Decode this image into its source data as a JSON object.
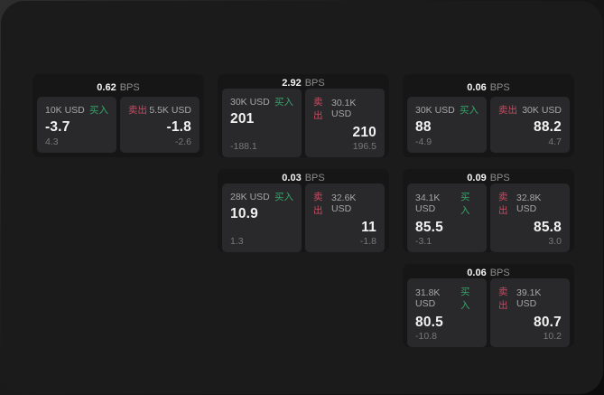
{
  "theme": {
    "panel_bg": "#1b1b1c",
    "card_bg": "#161617",
    "tile_bg": "#29292b",
    "buy_color": "#36a469",
    "sell_color": "#c84a62"
  },
  "labels": {
    "bps_unit": "BPS",
    "buy": "买入",
    "sell": "卖出"
  },
  "cards": [
    {
      "bps": "0.62",
      "col": 1,
      "row": 1,
      "buy": {
        "amount": "10K USD",
        "value": "-3.7",
        "sub": "4.3"
      },
      "sell": {
        "amount": "5.5K USD",
        "value": "-1.8",
        "sub": "-2.6"
      }
    },
    {
      "bps": "2.92",
      "col": 2,
      "row": 1,
      "buy": {
        "amount": "30K USD",
        "value": "201",
        "sub": "-188.1"
      },
      "sell": {
        "amount": "30.1K USD",
        "value": "210",
        "sub": "196.5"
      }
    },
    {
      "bps": "0.06",
      "col": 3,
      "row": 1,
      "buy": {
        "amount": "30K USD",
        "value": "88",
        "sub": "-4.9"
      },
      "sell": {
        "amount": "30K USD",
        "value": "88.2",
        "sub": "4.7"
      }
    },
    {
      "bps": "0.03",
      "col": 2,
      "row": 2,
      "buy": {
        "amount": "28K USD",
        "value": "10.9",
        "sub": "1.3"
      },
      "sell": {
        "amount": "32.6K USD",
        "value": "11",
        "sub": "-1.8"
      }
    },
    {
      "bps": "0.09",
      "col": 3,
      "row": 2,
      "buy": {
        "amount": "34.1K USD",
        "value": "85.5",
        "sub": "-3.1"
      },
      "sell": {
        "amount": "32.8K USD",
        "value": "85.8",
        "sub": "3.0"
      }
    },
    {
      "bps": "0.06",
      "col": 3,
      "row": 3,
      "buy": {
        "amount": "31.8K USD",
        "value": "80.5",
        "sub": "-10.8"
      },
      "sell": {
        "amount": "39.1K USD",
        "value": "80.7",
        "sub": "10.2"
      }
    }
  ]
}
